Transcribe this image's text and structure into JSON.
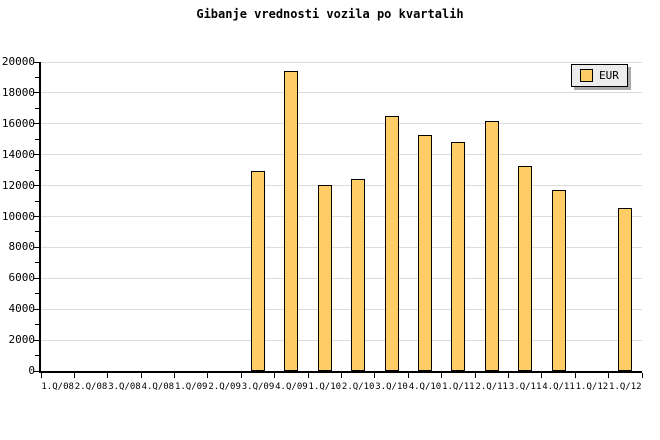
{
  "chart_data": {
    "type": "bar",
    "title": "Gibanje vrednosti vozila po kvartalih",
    "xlabel": "",
    "ylabel": "",
    "categories": [
      "1.Q/08",
      "2.Q/08",
      "3.Q/08",
      "4.Q/08",
      "1.Q/09",
      "2.Q/09",
      "3.Q/09",
      "4.Q/09",
      "1.Q/10",
      "2.Q/10",
      "3.Q/10",
      "4.Q/10",
      "1.Q/11",
      "2.Q/11",
      "3.Q/11",
      "4.Q/11",
      "1.Q/12",
      "1.Q/12"
    ],
    "series": [
      {
        "name": "EUR",
        "values": [
          null,
          null,
          null,
          null,
          null,
          null,
          12950,
          19400,
          12050,
          12400,
          16500,
          15300,
          14850,
          16200,
          13300,
          11700,
          null,
          10550
        ]
      }
    ],
    "ylim": [
      0,
      20000
    ],
    "y_major_step": 2000,
    "y_minor_step": 1000,
    "y_tick_labels": [
      "0",
      "2000",
      "4000",
      "6000",
      "8000",
      "10000",
      "12000",
      "14000",
      "16000",
      "18000",
      "20000"
    ],
    "grid": "horizontal-major-on",
    "legend": {
      "position": "top-right",
      "entries": [
        "EUR"
      ]
    },
    "colors": {
      "bar_fill": "#FFCC66",
      "bar_border": "#000000",
      "gridline": "#DCDCDC",
      "axis": "#000000",
      "background": "#FFFFFF",
      "legend_bg": "#ECECEC",
      "legend_border": "#000000",
      "legend_shadow": "#A9A9A9",
      "text": "#000000"
    }
  }
}
